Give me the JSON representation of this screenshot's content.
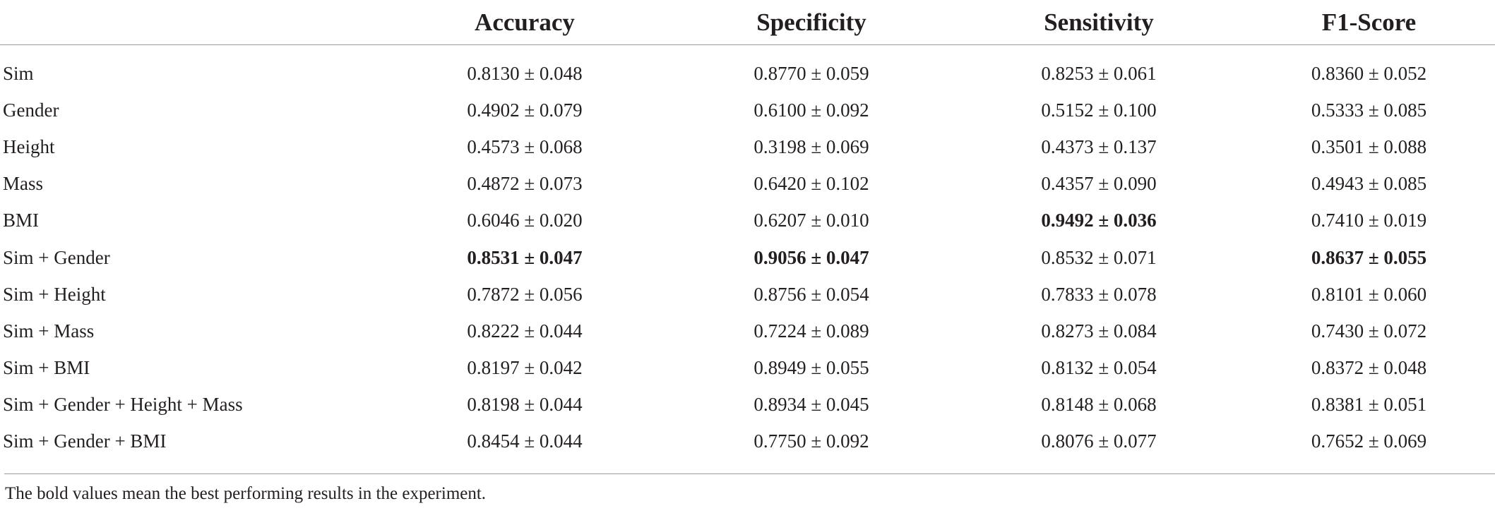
{
  "table": {
    "headers": [
      "",
      "Accuracy",
      "Specificity",
      "Sensitivity",
      "F1-Score"
    ],
    "rows": [
      {
        "label": "Sim",
        "cells": [
          {
            "text": "0.8130 ± 0.048",
            "bold": false
          },
          {
            "text": "0.8770 ± 0.059",
            "bold": false
          },
          {
            "text": "0.8253 ± 0.061",
            "bold": false
          },
          {
            "text": "0.8360 ± 0.052",
            "bold": false
          }
        ]
      },
      {
        "label": "Gender",
        "cells": [
          {
            "text": "0.4902 ± 0.079",
            "bold": false
          },
          {
            "text": "0.6100 ± 0.092",
            "bold": false
          },
          {
            "text": "0.5152 ± 0.100",
            "bold": false
          },
          {
            "text": "0.5333 ± 0.085",
            "bold": false
          }
        ]
      },
      {
        "label": "Height",
        "cells": [
          {
            "text": "0.4573 ± 0.068",
            "bold": false
          },
          {
            "text": "0.3198 ± 0.069",
            "bold": false
          },
          {
            "text": "0.4373 ± 0.137",
            "bold": false
          },
          {
            "text": "0.3501 ± 0.088",
            "bold": false
          }
        ]
      },
      {
        "label": "Mass",
        "cells": [
          {
            "text": "0.4872 ± 0.073",
            "bold": false
          },
          {
            "text": "0.6420 ± 0.102",
            "bold": false
          },
          {
            "text": "0.4357 ± 0.090",
            "bold": false
          },
          {
            "text": "0.4943 ± 0.085",
            "bold": false
          }
        ]
      },
      {
        "label": "BMI",
        "cells": [
          {
            "text": "0.6046 ± 0.020",
            "bold": false
          },
          {
            "text": "0.6207 ± 0.010",
            "bold": false
          },
          {
            "text": "0.9492 ± 0.036",
            "bold": true
          },
          {
            "text": "0.7410 ± 0.019",
            "bold": false
          }
        ]
      },
      {
        "label": "Sim + Gender",
        "cells": [
          {
            "text": "0.8531 ± 0.047",
            "bold": true
          },
          {
            "text": "0.9056 ± 0.047",
            "bold": true
          },
          {
            "text": "0.8532 ± 0.071",
            "bold": false
          },
          {
            "text": "0.8637 ± 0.055",
            "bold": true
          }
        ]
      },
      {
        "label": "Sim + Height",
        "cells": [
          {
            "text": "0.7872 ± 0.056",
            "bold": false
          },
          {
            "text": "0.8756 ± 0.054",
            "bold": false
          },
          {
            "text": "0.7833 ± 0.078",
            "bold": false
          },
          {
            "text": "0.8101 ± 0.060",
            "bold": false
          }
        ]
      },
      {
        "label": "Sim + Mass",
        "cells": [
          {
            "text": "0.8222 ± 0.044",
            "bold": false
          },
          {
            "text": "0.7224 ± 0.089",
            "bold": false
          },
          {
            "text": "0.8273 ± 0.084",
            "bold": false
          },
          {
            "text": "0.7430 ± 0.072",
            "bold": false
          }
        ]
      },
      {
        "label": "Sim + BMI",
        "cells": [
          {
            "text": "0.8197 ± 0.042",
            "bold": false
          },
          {
            "text": "0.8949 ± 0.055",
            "bold": false
          },
          {
            "text": "0.8132 ± 0.054",
            "bold": false
          },
          {
            "text": "0.8372 ± 0.048",
            "bold": false
          }
        ]
      },
      {
        "label": "Sim + Gender + Height + Mass",
        "cells": [
          {
            "text": "0.8198 ± 0.044",
            "bold": false
          },
          {
            "text": "0.8934 ± 0.045",
            "bold": false
          },
          {
            "text": "0.8148 ± 0.068",
            "bold": false
          },
          {
            "text": "0.8381 ± 0.051",
            "bold": false
          }
        ]
      },
      {
        "label": "Sim + Gender + BMI",
        "cells": [
          {
            "text": "0.8454 ± 0.044",
            "bold": false
          },
          {
            "text": "0.7750 ± 0.092",
            "bold": false
          },
          {
            "text": "0.8076 ± 0.077",
            "bold": false
          },
          {
            "text": "0.7652 ± 0.069",
            "bold": false
          }
        ]
      }
    ]
  },
  "footnote": "The bold values mean the best performing results in the experiment."
}
